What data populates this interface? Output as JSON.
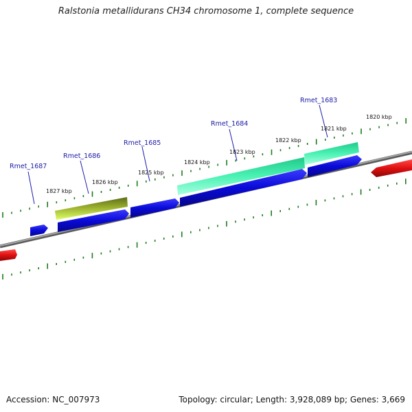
{
  "title": "Ralstonia metallidurans CH34 chromosome 1, complete sequence",
  "footer": {
    "accession": "Accession: NC_007973",
    "summary": "Topology: circular; Length: 3,928,089 bp; Genes: 3,669"
  },
  "scale": {
    "tick_labels": [
      "1827 kbp",
      "1826 kbp",
      "1825 kbp",
      "1824 kbp",
      "1823 kbp",
      "1822 kbp",
      "1821 kbp",
      "1820 kbp"
    ]
  },
  "genes": [
    {
      "label": "Rmet_1687"
    },
    {
      "label": "Rmet_1686"
    },
    {
      "label": "Rmet_1685"
    },
    {
      "label": "Rmet_1684"
    },
    {
      "label": "Rmet_1683"
    }
  ],
  "colors": {
    "backbone": "#8a8a8a",
    "cds": "#0a0ad8",
    "cds_other_strand": "#e01010",
    "gene_1684_1683": "#2ee8a0",
    "gene_1686": "#8fa02a",
    "tick": "#1a7a1a",
    "label": "#1a1aa6"
  }
}
